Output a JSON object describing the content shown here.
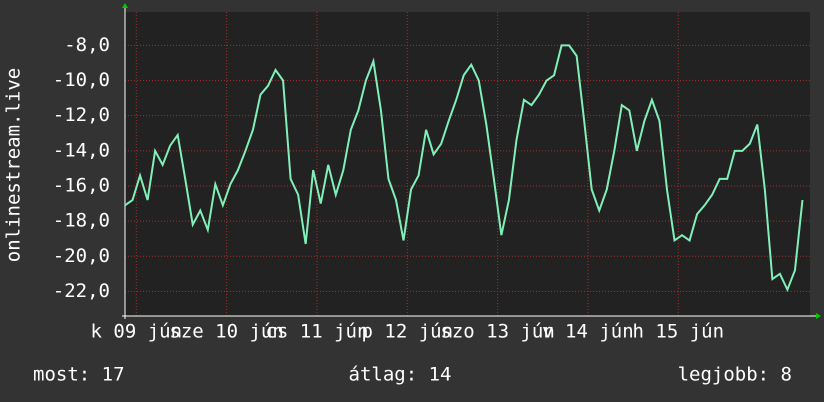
{
  "chart_data": {
    "type": "line",
    "y_label": "onlinestream.live",
    "x": [
      9,
      11,
      13,
      15,
      17,
      19,
      21,
      23,
      25,
      27,
      29,
      31,
      33,
      35,
      37,
      39,
      41,
      43,
      45,
      47,
      49,
      51,
      53,
      55,
      57,
      59,
      61,
      63,
      65,
      67,
      69,
      71,
      73,
      75,
      77,
      79,
      81,
      83,
      85,
      87,
      89,
      91,
      93,
      95,
      97,
      99,
      101,
      103,
      105,
      107,
      109,
      111,
      113,
      115,
      117,
      119,
      121,
      123,
      125,
      127,
      129,
      131,
      133,
      135,
      137,
      139,
      141,
      143,
      145,
      147,
      149,
      151,
      153,
      155,
      157,
      159,
      161,
      163,
      165,
      167,
      169,
      171,
      173,
      175,
      177,
      179,
      181,
      183,
      185,
      187,
      189
    ],
    "series": [
      {
        "color": "#80f0b8",
        "values": [
          -17.1,
          -16.8,
          -15.4,
          -16.8,
          -14.0,
          -14.8,
          -13.7,
          -13.1,
          -15.6,
          -18.2,
          -17.4,
          -18.5,
          -15.9,
          -17.1,
          -15.9,
          -15.1,
          -14.0,
          -12.8,
          -10.8,
          -10.3,
          -9.4,
          -10.0,
          -15.6,
          -16.5,
          -19.3,
          -15.1,
          -17.0,
          -14.8,
          -16.5,
          -15.1,
          -12.8,
          -11.7,
          -10.0,
          -8.9,
          -11.7,
          -15.6,
          -16.8,
          -19.1,
          -16.2,
          -15.4,
          -12.8,
          -14.2,
          -13.6,
          -12.3,
          -11.1,
          -9.7,
          -9.1,
          -10.0,
          -12.5,
          -15.6,
          -18.8,
          -16.8,
          -13.4,
          -11.1,
          -11.4,
          -10.8,
          -10.0,
          -9.7,
          -8.0,
          -8.0,
          -8.6,
          -12.3,
          -16.2,
          -17.4,
          -16.2,
          -14.0,
          -11.4,
          -11.7,
          -14.0,
          -12.3,
          -11.1,
          -12.3,
          -16.2,
          -19.1,
          -18.8,
          -19.1,
          -17.6,
          -17.1,
          -16.5,
          -15.6,
          -15.6,
          -14.0,
          -14.0,
          -13.6,
          -12.5,
          -16.2,
          -21.3,
          -21.0,
          -21.9,
          -20.8,
          -16.8
        ]
      }
    ],
    "xlim": [
      9,
      191
    ],
    "xticks": [
      {
        "value": 12,
        "label": "k 09 jún"
      },
      {
        "value": 36,
        "label": "sze 10 jún"
      },
      {
        "value": 60,
        "label": "cs 11 jún"
      },
      {
        "value": 84,
        "label": "p 12 jún"
      },
      {
        "value": 108,
        "label": "szo 13 jún"
      },
      {
        "value": 132,
        "label": "v 14 jún"
      },
      {
        "value": 156,
        "label": "h 15 jún"
      }
    ],
    "ylim": [
      -23.4,
      -6.1
    ],
    "yticks": [
      {
        "value": -22,
        "label": "-22,0"
      },
      {
        "value": -20,
        "label": "-20,0"
      },
      {
        "value": -18,
        "label": "-18,0"
      },
      {
        "value": -16,
        "label": "-16,0"
      },
      {
        "value": -14,
        "label": "-14,0"
      },
      {
        "value": -12,
        "label": "-12,0"
      },
      {
        "value": -10,
        "label": "-10,0"
      },
      {
        "value": -8,
        "label": "-8,0"
      }
    ],
    "grid": true,
    "footer": [
      "most: 17",
      "átlag: 14",
      "legjobb: 8"
    ]
  }
}
